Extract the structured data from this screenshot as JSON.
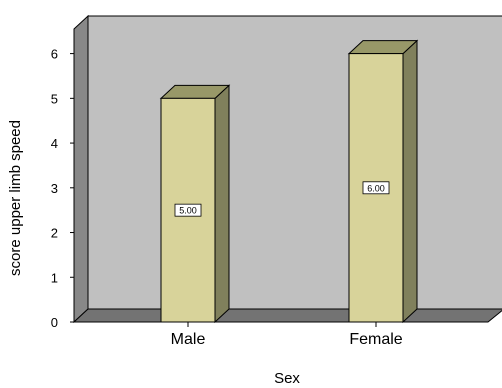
{
  "chart_data": {
    "type": "bar",
    "categories": [
      "Male",
      "Female"
    ],
    "values": [
      5.0,
      6.0
    ],
    "data_labels": [
      "5.00",
      "6.00"
    ],
    "xlabel": "Sex",
    "ylabel": "score upper limb speed",
    "ylim": [
      0,
      6.55
    ],
    "yticks": [
      0,
      1,
      2,
      3,
      4,
      5,
      6
    ],
    "ytick_labels": [
      "0",
      "1",
      "2",
      "3",
      "4",
      "5",
      "6"
    ],
    "style": "3d",
    "grid": false,
    "legend": "none",
    "colors": {
      "back_wall": "#c0c0c0",
      "left_wall": "#888888",
      "floor": "#737373",
      "bar_front": "#d8d39a",
      "bar_side": "#80805c",
      "bar_top": "#989868"
    }
  }
}
